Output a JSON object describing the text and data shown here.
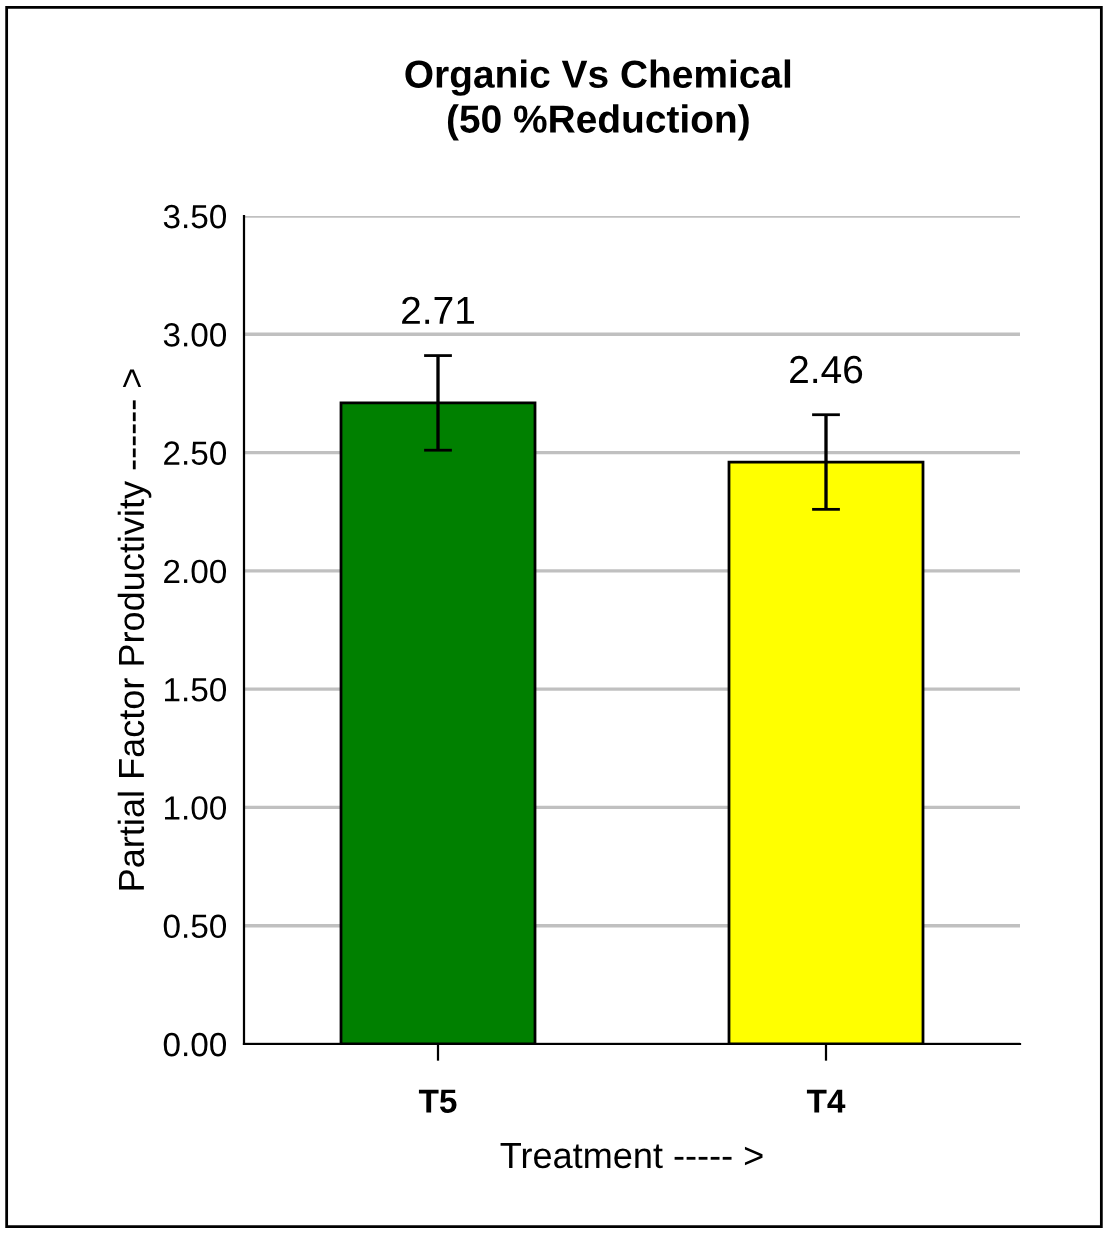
{
  "chart_data": {
    "type": "bar",
    "title": "Organic Vs Chemical\n(50 %Reduction)",
    "xlabel": "Treatment ----- >",
    "ylabel": "Partial Factor Productivity ------ >",
    "categories": [
      "T5",
      "T4"
    ],
    "values": [
      2.71,
      2.46
    ],
    "colors": [
      "#008000",
      "#ffff00"
    ],
    "errors": [
      0.2,
      0.2
    ],
    "data_labels": true,
    "ylim": [
      0,
      3.5
    ],
    "yticks": [
      {
        "value": 0,
        "label": "0.00"
      },
      {
        "value": 0.5,
        "label": "0.50"
      },
      {
        "value": 1,
        "label": "1.00"
      },
      {
        "value": 1.5,
        "label": "1.50"
      },
      {
        "value": 2,
        "label": "2.00"
      },
      {
        "value": 2.5,
        "label": "2.50"
      },
      {
        "value": 3,
        "label": "3.00"
      },
      {
        "value": 3.5,
        "label": "3.50"
      }
    ],
    "grid": "y"
  }
}
